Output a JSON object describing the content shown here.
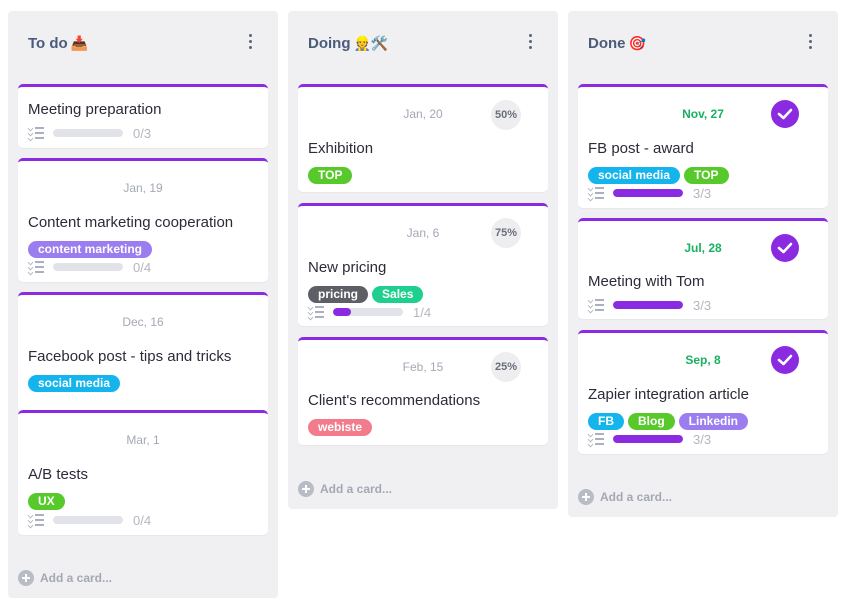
{
  "colors": {
    "accent": "#8a2be2",
    "done_date": "#17b15f"
  },
  "columns": [
    {
      "title": "To do",
      "emoji": "📥",
      "add_card": "Add a card...",
      "cards": [
        {
          "title": "Meeting preparation",
          "progress": {
            "done": 0,
            "total": 3,
            "label": "0/3"
          }
        },
        {
          "date": "Jan, 19",
          "title": "Content marketing cooperation",
          "tags": [
            {
              "label": "content marketing",
              "color": "#9b7df0"
            }
          ],
          "progress": {
            "done": 0,
            "total": 4,
            "label": "0/4"
          }
        },
        {
          "date": "Dec, 16",
          "title": "Facebook post - tips and tricks",
          "tags": [
            {
              "label": "social media",
              "color": "#14b4ec"
            }
          ]
        },
        {
          "date": "Mar, 1",
          "title": "A/B tests",
          "tags": [
            {
              "label": "UX",
              "color": "#57c92b"
            }
          ],
          "progress": {
            "done": 0,
            "total": 4,
            "label": "0/4"
          }
        }
      ]
    },
    {
      "title": "Doing",
      "emoji": "👷🛠️",
      "add_card": "Add a card...",
      "cards": [
        {
          "date": "Jan, 20",
          "percent": "50%",
          "title": "Exhibition",
          "tags": [
            {
              "label": "TOP",
              "color": "#57c92b"
            }
          ]
        },
        {
          "date": "Jan, 6",
          "percent": "75%",
          "title": "New pricing",
          "tags": [
            {
              "label": "pricing",
              "color": "#5e5e66"
            },
            {
              "label": "Sales",
              "color": "#1fcf8f"
            }
          ],
          "progress": {
            "done": 1,
            "total": 4,
            "label": "1/4"
          }
        },
        {
          "date": "Feb, 15",
          "percent": "25%",
          "title": "Client's recommendations",
          "tags": [
            {
              "label": "webiste",
              "color": "#f27c8b"
            }
          ]
        }
      ]
    },
    {
      "title": "Done",
      "emoji": "🎯",
      "add_card": "Add a card...",
      "cards": [
        {
          "date": "Nov, 27",
          "done": true,
          "title": "FB post - award",
          "tags": [
            {
              "label": "social media",
              "color": "#14b4ec"
            },
            {
              "label": "TOP",
              "color": "#57c92b"
            }
          ],
          "progress": {
            "done": 3,
            "total": 3,
            "label": "3/3"
          }
        },
        {
          "date": "Jul, 28",
          "done": true,
          "title": "Meeting with Tom",
          "progress": {
            "done": 3,
            "total": 3,
            "label": "3/3"
          }
        },
        {
          "date": "Sep, 8",
          "done": true,
          "title": "Zapier integration article",
          "tags": [
            {
              "label": "FB",
              "color": "#14b4ec"
            },
            {
              "label": "Blog",
              "color": "#57c92b"
            },
            {
              "label": "Linkedin",
              "color": "#9b7df0"
            }
          ],
          "progress": {
            "done": 3,
            "total": 3,
            "label": "3/3"
          }
        }
      ]
    }
  ]
}
